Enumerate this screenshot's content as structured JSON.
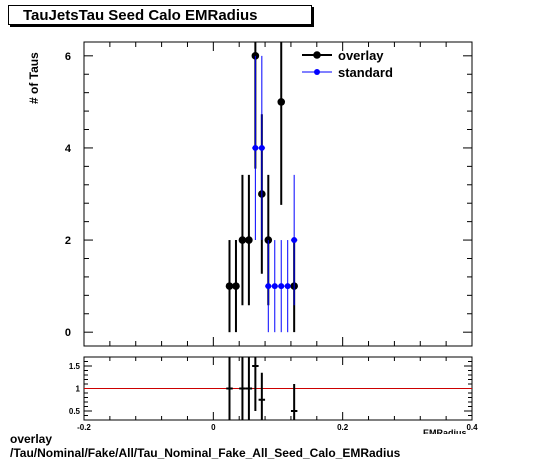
{
  "title": "TauJetsTau Seed Calo EMRadius",
  "ylabel": "# of Taus",
  "xlabel": "EMRadius",
  "footer": {
    "line1": "overlay",
    "line2": "/Tau/Nominal/Fake/All/Tau_Nominal_Fake_All_Seed_Calo_EMRadius"
  },
  "colors": {
    "overlay": "#000000",
    "standard": "#0000ff",
    "ratio_line": "#cc0000"
  },
  "chart_data": [
    {
      "type": "scatter",
      "title": "TauJetsTau Seed Calo EMRadius",
      "ylabel": "# of Taus",
      "xlim": [
        -0.2,
        0.4
      ],
      "ylim": [
        -0.3,
        6.3
      ],
      "yticks": [
        0,
        2,
        4,
        6
      ],
      "legend": "top-right",
      "series": [
        {
          "name": "overlay",
          "color": "#000000",
          "points": [
            {
              "x": 0.025,
              "y": 1,
              "err": 1
            },
            {
              "x": 0.035,
              "y": 1,
              "err": 1
            },
            {
              "x": 0.045,
              "y": 2,
              "err": 1.414
            },
            {
              "x": 0.055,
              "y": 2,
              "err": 1.414
            },
            {
              "x": 0.065,
              "y": 6,
              "err": 2.449
            },
            {
              "x": 0.075,
              "y": 3,
              "err": 1.732
            },
            {
              "x": 0.085,
              "y": 2,
              "err": 1.414
            },
            {
              "x": 0.105,
              "y": 5,
              "err": 2.236
            },
            {
              "x": 0.125,
              "y": 1,
              "err": 1
            }
          ]
        },
        {
          "name": "standard",
          "color": "#0000ff",
          "points": [
            {
              "x": 0.065,
              "y": 4,
              "err": 2
            },
            {
              "x": 0.075,
              "y": 4,
              "err": 2
            },
            {
              "x": 0.085,
              "y": 1,
              "err": 1
            },
            {
              "x": 0.095,
              "y": 1,
              "err": 1
            },
            {
              "x": 0.105,
              "y": 1,
              "err": 1
            },
            {
              "x": 0.115,
              "y": 1,
              "err": 1
            },
            {
              "x": 0.125,
              "y": 2,
              "err": 1.414
            }
          ]
        }
      ]
    },
    {
      "type": "scatter",
      "title": "ratio",
      "xlim": [
        -0.2,
        0.4
      ],
      "ylim": [
        0.3,
        1.7
      ],
      "xticks": [
        -0.2,
        0,
        0.2,
        0.4
      ],
      "yticks": [
        0.5,
        1,
        1.5
      ],
      "reference_line": 1,
      "points": [
        {
          "x": 0.025,
          "y": 1.0,
          "err": 1.0
        },
        {
          "x": 0.045,
          "y": 1.0,
          "err": 1.0
        },
        {
          "x": 0.055,
          "y": 1.0,
          "err": 1.0
        },
        {
          "x": 0.065,
          "y": 1.5,
          "err": 1.0
        },
        {
          "x": 0.075,
          "y": 0.75,
          "err": 0.6
        },
        {
          "x": 0.125,
          "y": 0.5,
          "err": 0.6
        }
      ]
    }
  ]
}
